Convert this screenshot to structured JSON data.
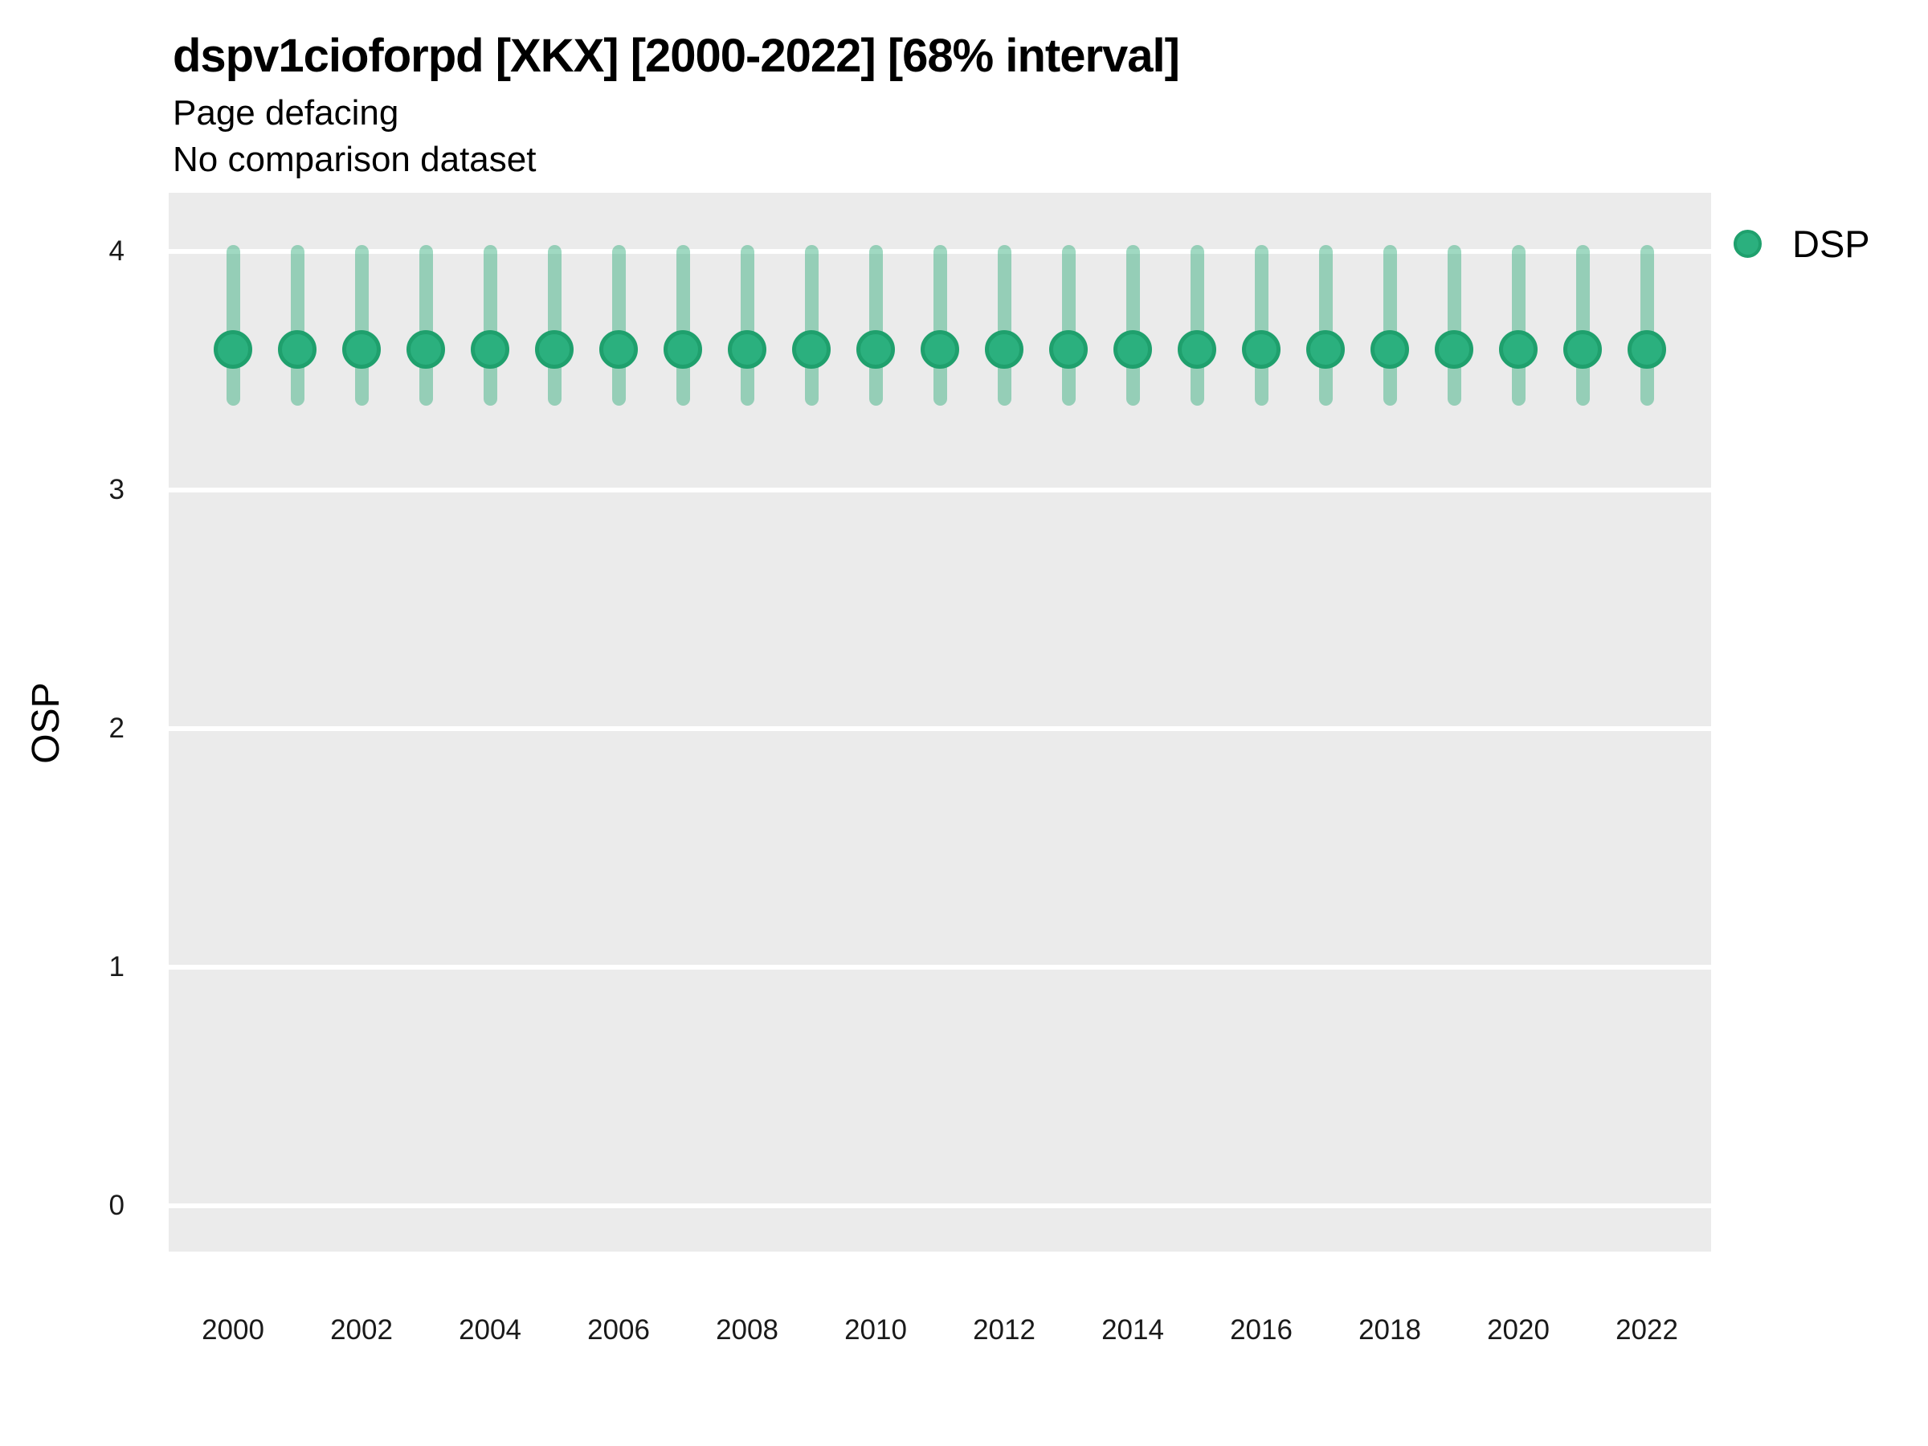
{
  "title": "dspv1cioforpd [XKX] [2000-2022] [68% interval]",
  "subtitle1": "Page defacing",
  "subtitle2": "No comparison dataset",
  "y_axis_label": "OSP",
  "legend": {
    "items": [
      {
        "label": "DSP",
        "color": "#2bb07e",
        "border": "#1fa06d"
      }
    ]
  },
  "colors": {
    "panel_background": "#ebebeb",
    "gridline": "#ffffff",
    "point_fill": "#2bb07e",
    "point_border": "#1fa06d",
    "interval_bar": "rgba(45,170,120,0.45)",
    "text": "#000000",
    "tick_text": "#1a1a1a"
  },
  "chart_data": {
    "type": "scatter",
    "title": "dspv1cioforpd [XKX] [2000-2022] [68% interval]",
    "subtitle": [
      "Page defacing",
      "No comparison dataset"
    ],
    "xlabel": "",
    "ylabel": "OSP",
    "x": [
      2000,
      2001,
      2002,
      2003,
      2004,
      2005,
      2006,
      2007,
      2008,
      2009,
      2010,
      2011,
      2012,
      2013,
      2014,
      2015,
      2016,
      2017,
      2018,
      2019,
      2020,
      2021,
      2022
    ],
    "series": [
      {
        "name": "DSP",
        "values": [
          3.59,
          3.59,
          3.59,
          3.59,
          3.59,
          3.59,
          3.59,
          3.59,
          3.59,
          3.59,
          3.59,
          3.59,
          3.59,
          3.59,
          3.59,
          3.59,
          3.59,
          3.59,
          3.59,
          3.59,
          3.59,
          3.59,
          3.59
        ],
        "lower_68": [
          3.38,
          3.38,
          3.38,
          3.38,
          3.38,
          3.38,
          3.38,
          3.38,
          3.38,
          3.38,
          3.38,
          3.38,
          3.38,
          3.38,
          3.38,
          3.38,
          3.38,
          3.38,
          3.38,
          3.38,
          3.38,
          3.38,
          3.38
        ],
        "upper_68": [
          4.0,
          4.0,
          4.0,
          4.0,
          4.0,
          4.0,
          4.0,
          4.0,
          4.0,
          4.0,
          4.0,
          4.0,
          4.0,
          4.0,
          4.0,
          4.0,
          4.0,
          4.0,
          4.0,
          4.0,
          4.0,
          4.0,
          4.0
        ]
      }
    ],
    "x_ticks": [
      2000,
      2002,
      2004,
      2006,
      2008,
      2010,
      2012,
      2014,
      2016,
      2018,
      2020,
      2022
    ],
    "y_ticks": [
      0,
      1,
      2,
      3,
      4
    ],
    "ylim": [
      -0.25,
      4.25
    ],
    "grid": "horizontal white major gridlines on gray panel, no vertical gridlines",
    "legend_position": "right"
  }
}
